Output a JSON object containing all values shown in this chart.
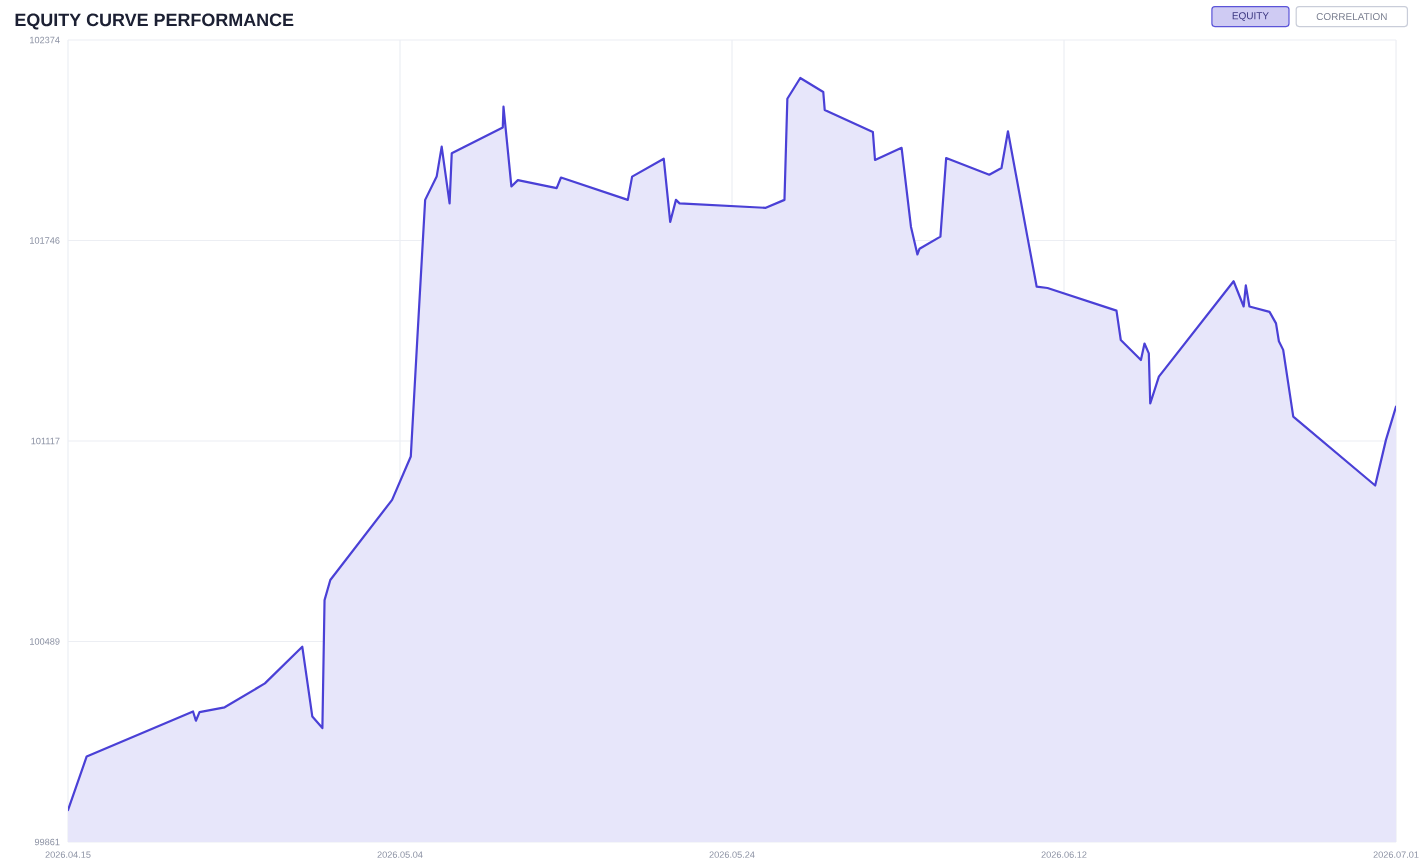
{
  "chart_data": {
    "type": "area",
    "title": "EQUITY CURVE PERFORMANCE",
    "annotations": [
      "EQUITY",
      "CORRELATION"
    ],
    "x": [
      "2026-04-15T12:00",
      "2026-04-16T14:00",
      "2026-04-22T18:00",
      "2026-04-22T22:00",
      "2026-04-23T03:00",
      "2026-04-24T14:00",
      "2026-04-26T22:00",
      "2026-04-29T02:00",
      "2026-04-29T16:00",
      "2026-04-30T06:00",
      "2026-04-30T09:00",
      "2026-04-30T17:00",
      "2026-05-04T07:00",
      "2026-05-05T09:00",
      "2026-05-05T18:00",
      "2026-05-06T05:00",
      "2026-05-06T21:00",
      "2026-05-07T04:00",
      "2026-05-07T15:00",
      "2026-05-07T18:00",
      "2026-05-10T17:00",
      "2026-05-10T18:00",
      "2026-05-11T05:00",
      "2026-05-11T14:00",
      "2026-05-13T20:00",
      "2026-05-14T02:00",
      "2026-05-17T23:00",
      "2026-05-18T05:00",
      "2026-05-20T01:00",
      "2026-05-20T10:00",
      "2026-05-20T18:00",
      "2026-05-20T23:00",
      "2026-05-25T23:00",
      "2026-05-27T01:00",
      "2026-05-27T05:00",
      "2026-05-27T23:00",
      "2026-05-29T07:00",
      "2026-05-29T09:00",
      "2026-06-01T04:00",
      "2026-06-01T07:00",
      "2026-06-02T20:00",
      "2026-06-03T09:00",
      "2026-06-03T18:00",
      "2026-06-03T21:00",
      "2026-06-05T02:00",
      "2026-06-05T10:00",
      "2026-06-07T22:00",
      "2026-06-08T15:00",
      "2026-06-09T00:00",
      "2026-06-10T03:00",
      "2026-06-10T16:00",
      "2026-06-11T07:00",
      "2026-06-15T07:00",
      "2026-06-15T13:00",
      "2026-06-16T17:00",
      "2026-06-16T22:00",
      "2026-06-17T04:00",
      "2026-06-17T06:00",
      "2026-06-17T18:00",
      "2026-06-22T02:00",
      "2026-06-22T16:00",
      "2026-06-22T19:00",
      "2026-06-23T00:00",
      "2026-06-24T04:00",
      "2026-06-24T13:00",
      "2026-06-24T17:00",
      "2026-06-24T23:00",
      "2026-06-25T13:00",
      "2026-06-30T07:00",
      "2026-06-30T22:00",
      "2026-07-01T12:00"
    ],
    "series": [
      {
        "color": "#4a40d6",
        "values": [
          99961,
          100129,
          100270,
          100241,
          100268,
          100283,
          100358,
          100473,
          100254,
          100218,
          100619,
          100682,
          100933,
          101069,
          101434,
          101873,
          101946,
          102040,
          101862,
          102019,
          102100,
          102165,
          101915,
          101935,
          101910,
          101943,
          101873,
          101946,
          102002,
          101804,
          101873,
          101862,
          101848,
          101873,
          102190,
          102255,
          102211,
          102155,
          102086,
          101998,
          102036,
          101789,
          101702,
          101720,
          101758,
          102004,
          101952,
          101973,
          102088,
          101758,
          101601,
          101597,
          101526,
          101434,
          101371,
          101423,
          101392,
          101235,
          101319,
          101618,
          101539,
          101605,
          101539,
          101522,
          101486,
          101430,
          101403,
          101194,
          100978,
          101121,
          101225
        ]
      }
    ],
    "xlim": [
      "2026-04-15T12:00",
      "2026-07-01T12:00"
    ],
    "xticks": [
      {
        "value": "2026-04-15T12:00",
        "label": "2026.04.15"
      },
      {
        "value": "2026-05-04T18:00",
        "label": "2026.05.04"
      },
      {
        "value": "2026-05-24T00:00",
        "label": "2026.05.24"
      },
      {
        "value": "2026-06-12T06:00",
        "label": "2026.06.12"
      },
      {
        "value": "2026-07-01T12:00",
        "label": "2026.07.01"
      }
    ],
    "ylim": [
      99861,
      102374
    ],
    "yticks": [
      99861,
      {
        "value": 100489.25,
        "label": "100489"
      },
      {
        "value": 101117.5,
        "label": "101117"
      },
      {
        "value": 101745.75,
        "label": "101746"
      },
      102374
    ],
    "grid": true,
    "marker": "none"
  }
}
